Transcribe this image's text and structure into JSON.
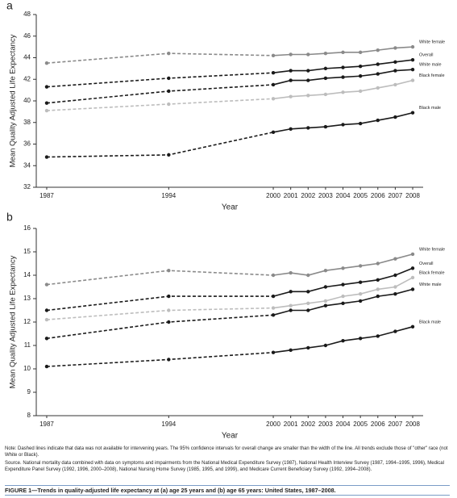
{
  "chart_data": [
    {
      "type": "line",
      "panel_label": "a",
      "xlabel": "Year",
      "ylabel": "Mean Quality Adjusted Life Expectancy",
      "x": [
        1987,
        1994,
        2000,
        2001,
        2002,
        2003,
        2004,
        2005,
        2006,
        2007,
        2008
      ],
      "xlim": [
        1986.4,
        2008.6
      ],
      "xticks": [
        1987,
        1994,
        2000,
        2001,
        2002,
        2003,
        2004,
        2005,
        2006,
        2007,
        2008
      ],
      "ylim": [
        32,
        48
      ],
      "yticks": [
        32,
        34,
        36,
        38,
        40,
        42,
        44,
        46,
        48
      ],
      "series": [
        {
          "name": "White female",
          "color": "#8a8a8a",
          "values": [
            43.5,
            44.4,
            44.2,
            44.3,
            44.3,
            44.4,
            44.5,
            44.5,
            44.7,
            44.9,
            45.0
          ]
        },
        {
          "name": "Overall",
          "color": "#1a1a1a",
          "values": [
            41.3,
            42.1,
            42.6,
            42.8,
            42.8,
            43.0,
            43.1,
            43.2,
            43.4,
            43.6,
            43.8
          ]
        },
        {
          "name": "White male",
          "color": "#1a1a1a",
          "values": [
            39.8,
            40.9,
            41.5,
            41.9,
            41.9,
            42.1,
            42.2,
            42.3,
            42.5,
            42.8,
            42.9
          ]
        },
        {
          "name": "Black female",
          "color": "#bdbdbd",
          "values": [
            39.1,
            39.7,
            40.2,
            40.4,
            40.5,
            40.6,
            40.8,
            40.9,
            41.2,
            41.5,
            41.9
          ]
        },
        {
          "name": "Black male",
          "color": "#1a1a1a",
          "values": [
            34.8,
            35.0,
            37.1,
            37.4,
            37.5,
            37.6,
            37.8,
            37.9,
            38.2,
            38.5,
            38.9
          ]
        }
      ]
    },
    {
      "type": "line",
      "panel_label": "b",
      "xlabel": "Year",
      "ylabel": "Mean Quality Adjusted Life Expectancy",
      "x": [
        1987,
        1994,
        2000,
        2001,
        2002,
        2003,
        2004,
        2005,
        2006,
        2007,
        2008
      ],
      "xlim": [
        1986.4,
        2008.6
      ],
      "xticks": [
        1987,
        1994,
        2000,
        2001,
        2002,
        2003,
        2004,
        2005,
        2006,
        2007,
        2008
      ],
      "ylim": [
        8,
        16
      ],
      "yticks": [
        8,
        9,
        10,
        11,
        12,
        13,
        14,
        15,
        16
      ],
      "series": [
        {
          "name": "White female",
          "color": "#8a8a8a",
          "values": [
            13.6,
            14.2,
            14.0,
            14.1,
            14.0,
            14.2,
            14.3,
            14.4,
            14.5,
            14.7,
            14.9
          ]
        },
        {
          "name": "Overall",
          "color": "#1a1a1a",
          "values": [
            12.5,
            13.1,
            13.1,
            13.3,
            13.3,
            13.5,
            13.6,
            13.7,
            13.8,
            14.0,
            14.3
          ]
        },
        {
          "name": "Black female",
          "color": "#bdbdbd",
          "values": [
            12.1,
            12.5,
            12.6,
            12.7,
            12.8,
            12.9,
            13.1,
            13.2,
            13.4,
            13.5,
            13.9
          ]
        },
        {
          "name": "White male",
          "color": "#1a1a1a",
          "values": [
            11.3,
            12.0,
            12.3,
            12.5,
            12.5,
            12.7,
            12.8,
            12.9,
            13.1,
            13.2,
            13.4
          ]
        },
        {
          "name": "Black male",
          "color": "#1a1a1a",
          "values": [
            10.1,
            10.4,
            10.7,
            10.8,
            10.9,
            11.0,
            11.2,
            11.3,
            11.4,
            11.6,
            11.8
          ]
        }
      ]
    }
  ],
  "note": "Note: Dashed lines indicate that data was not available for intervening years. The 95% confidence intervals for overall change are smaller than the width of the line. All trends exclude those of \"other\" race (not White or Black).",
  "source": "Source. National mortality data combined with data on symptoms and impairments from the National Medical Expenditure Survey (1987), National Health Interview Survey (1987, 1994–1995, 1996), Medical Expenditure Panel Survey (1992, 1996, 2000–2008), National Nursing Home Survey (1985, 1995, and 1999), and Medicare Current Beneficiary Survey (1992, 1994–2008).",
  "caption": "FIGURE 1—Trends in quality-adjusted life expectancy at (a) age 25 years and (b) age 65 years: United States, 1987–2008."
}
